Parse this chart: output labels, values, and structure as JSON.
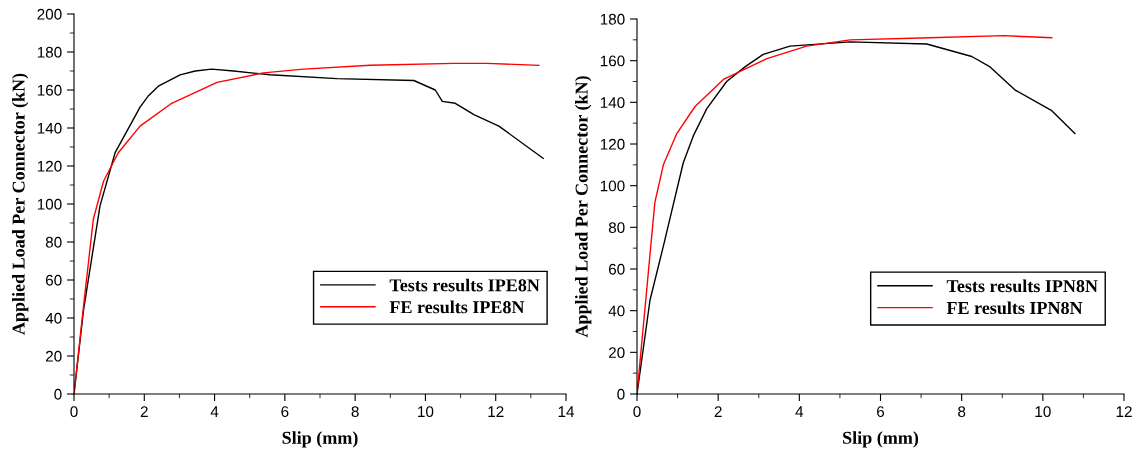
{
  "chart_data": [
    {
      "type": "line",
      "xlabel": "Slip (mm)",
      "ylabel": "Applied Load Per Connector (kN)",
      "xlim": [
        0,
        14
      ],
      "xticks": [
        0,
        2,
        4,
        6,
        8,
        10,
        12,
        14
      ],
      "ylim": [
        0,
        200
      ],
      "yticks": [
        0,
        20,
        40,
        60,
        80,
        100,
        120,
        140,
        160,
        180,
        200
      ],
      "legend": "bottom right",
      "grid": false,
      "series": [
        {
          "name": "Tests results IPE8N",
          "color": "#000000",
          "x": [
            0,
            0.27,
            0.74,
            1.17,
            1.88,
            2.12,
            2.4,
            3.02,
            3.45,
            3.92,
            4.54,
            5.58,
            7.48,
            9.67,
            10.28,
            10.48,
            10.85,
            11.38,
            12.09,
            13.35
          ],
          "values": [
            0,
            44,
            99,
            127,
            151,
            157,
            162,
            168,
            170,
            171,
            170,
            168,
            166,
            165,
            160,
            154,
            153,
            147,
            141,
            124
          ]
        },
        {
          "name": "FE results IPE8N",
          "color": "#ff0000",
          "x": [
            0,
            0.27,
            0.55,
            0.84,
            1.26,
            1.88,
            2.78,
            4.07,
            5.39,
            6.53,
            8.43,
            10.81,
            11.76,
            13.23
          ],
          "values": [
            0,
            46,
            92,
            112,
            127,
            141,
            153,
            164,
            169,
            171,
            173,
            174,
            174,
            173
          ]
        }
      ]
    },
    {
      "type": "line",
      "xlabel": "Slip (mm)",
      "ylabel": "Applied Load Per Connector (kN)",
      "xlim": [
        0,
        12
      ],
      "xticks": [
        0,
        2,
        4,
        6,
        8,
        10,
        12
      ],
      "ylim": [
        0,
        180
      ],
      "yticks": [
        0,
        20,
        40,
        60,
        80,
        100,
        120,
        140,
        160,
        180
      ],
      "legend": "bottom right",
      "grid": false,
      "series": [
        {
          "name": "Tests results IPN8N",
          "color": "#000000",
          "x": [
            0,
            0.32,
            0.65,
            1.14,
            1.39,
            1.72,
            2.21,
            2.66,
            3.11,
            3.77,
            5.25,
            7.14,
            8.25,
            8.7,
            9.31,
            10.22,
            10.79
          ],
          "values": [
            0,
            45,
            71,
            111,
            124,
            137,
            150,
            157,
            163,
            167,
            169,
            168,
            162,
            157,
            146,
            136,
            125
          ]
        },
        {
          "name": "FE results IPN8N",
          "color": "#ff0000",
          "x": [
            0,
            0.44,
            0.65,
            0.98,
            1.43,
            2.13,
            3.2,
            4.18,
            5.25,
            7.22,
            9.03,
            10.22
          ],
          "values": [
            0,
            92,
            110,
            125,
            138,
            151,
            161,
            167,
            170,
            171,
            172,
            171
          ]
        }
      ]
    }
  ]
}
